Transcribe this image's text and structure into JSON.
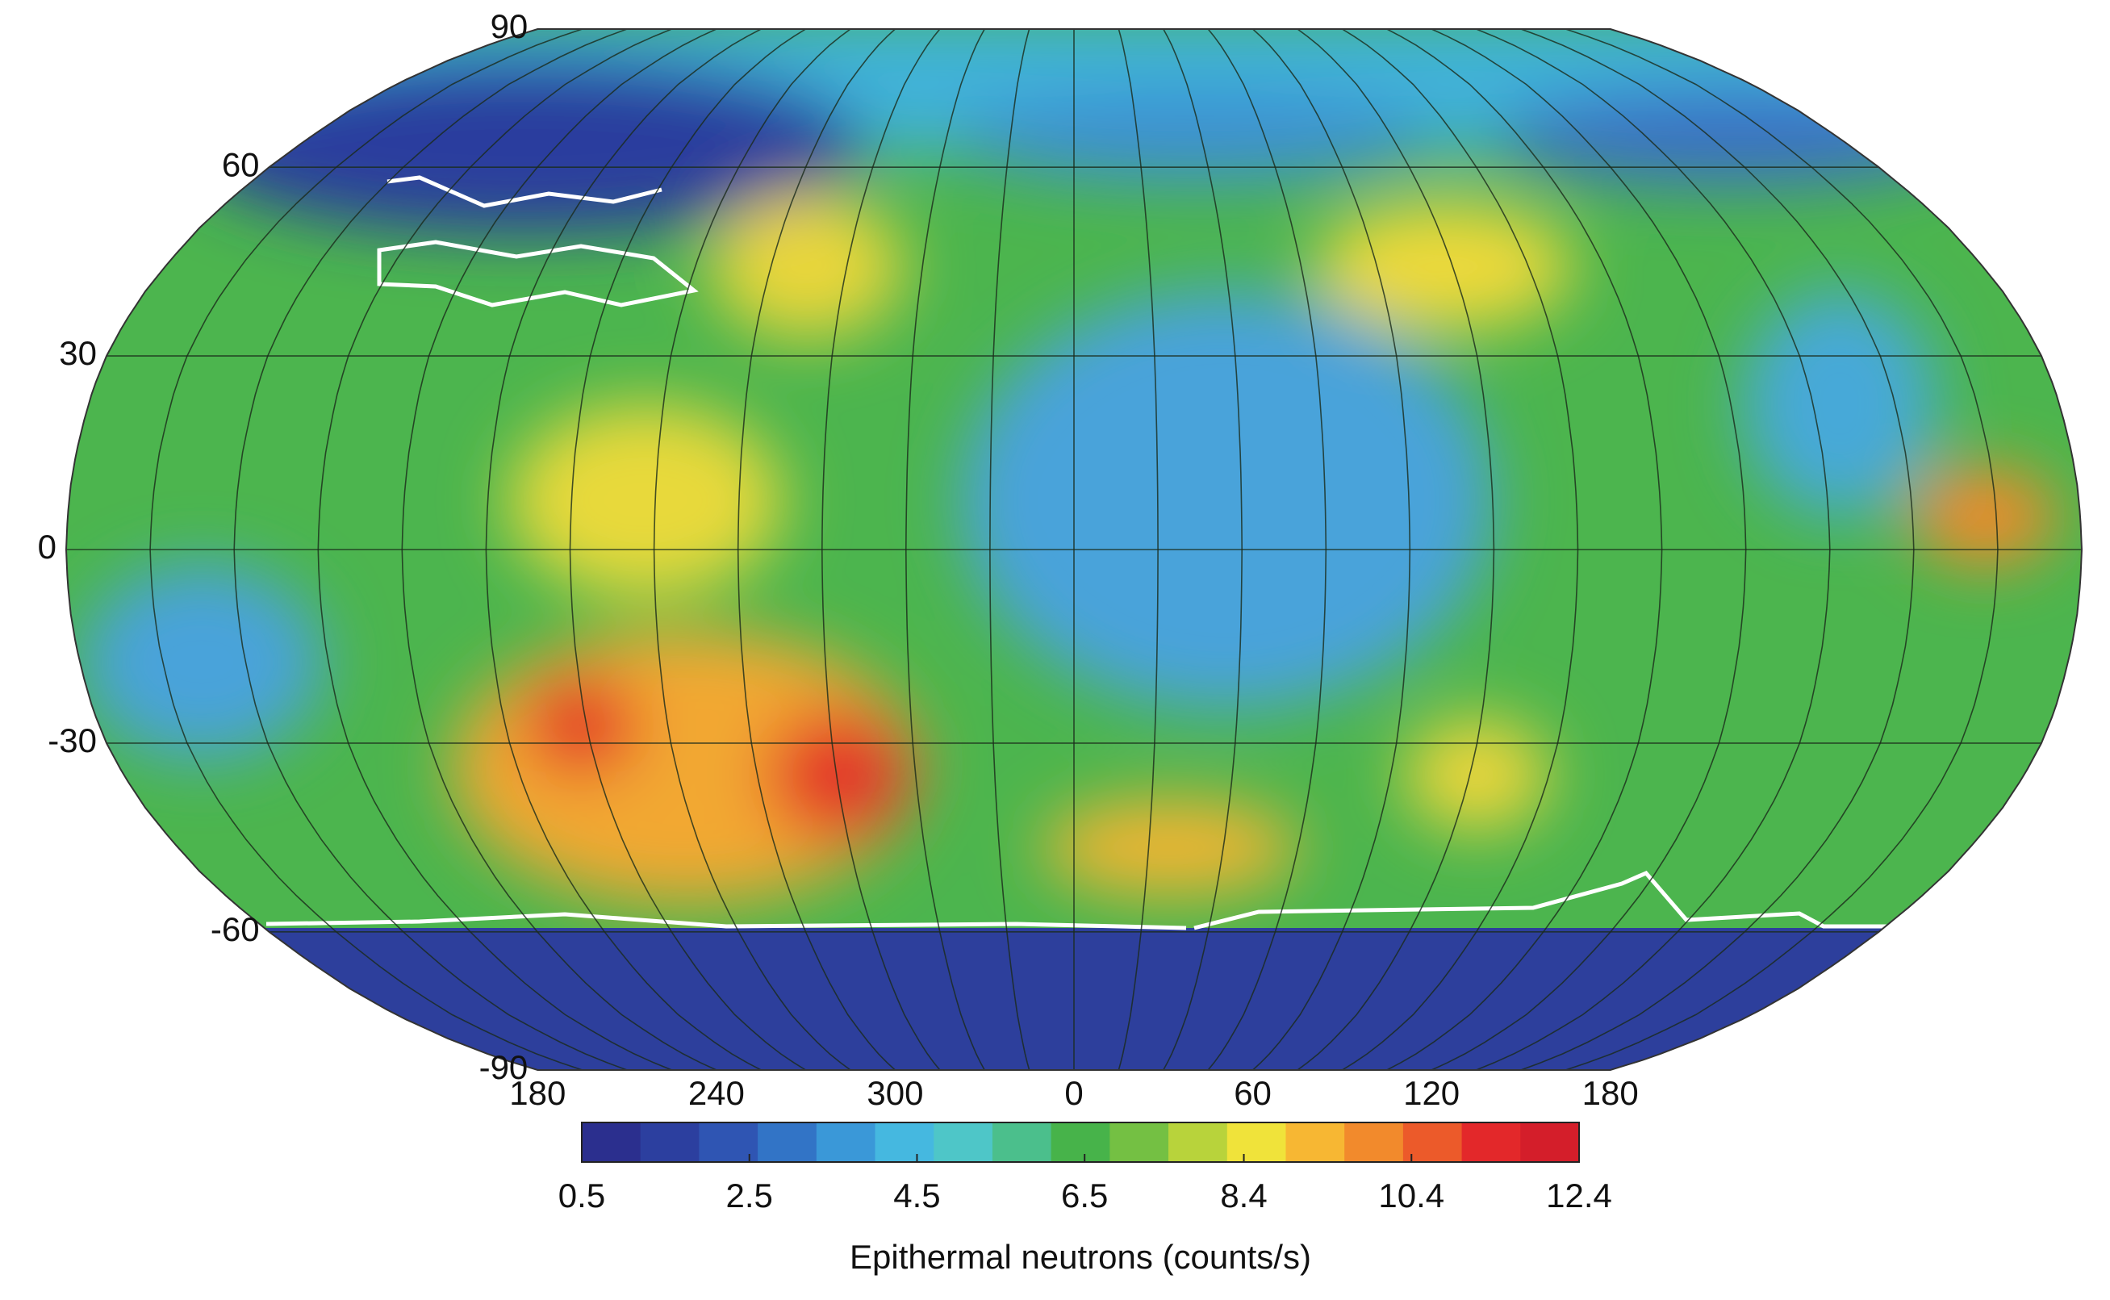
{
  "map": {
    "lat_labels": [
      90,
      60,
      30,
      0,
      -30,
      -60,
      -90
    ],
    "lon_labels": [
      180,
      240,
      300,
      0,
      60,
      120,
      180
    ]
  },
  "colorbar": {
    "lim": [
      0.5,
      12.4
    ],
    "ticks": [
      0.5,
      2.5,
      4.5,
      6.5,
      8.4,
      10.4,
      12.4
    ],
    "label": "Epithermal neutrons (counts/s)",
    "colors": [
      "#2b2f8e",
      "#2c3f9f",
      "#2f55b3",
      "#3274c6",
      "#3a98d8",
      "#45b8e0",
      "#4ec6c8",
      "#4bbf8c",
      "#47b34a",
      "#74c043",
      "#b8d33b",
      "#f0e33a",
      "#f7b733",
      "#f28a2c",
      "#ec5a2a",
      "#e3282a",
      "#d41e2a"
    ]
  }
}
